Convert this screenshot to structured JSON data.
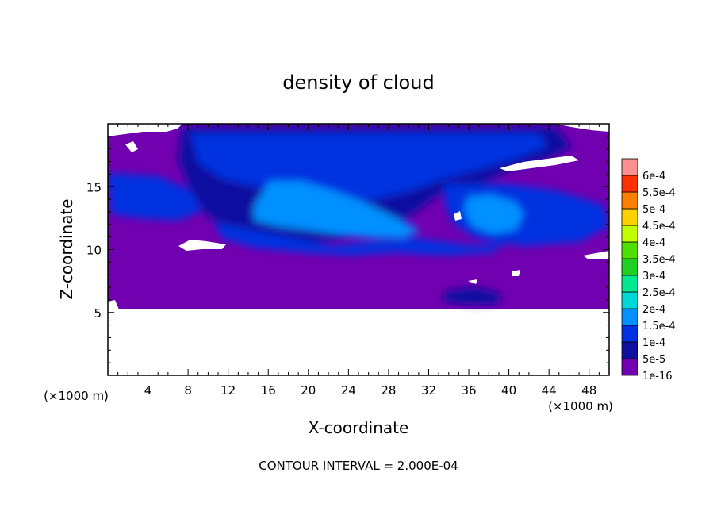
{
  "chart_data": {
    "type": "heatmap",
    "title": "density of cloud",
    "xlabel": "X-coordinate",
    "ylabel": "Z-coordinate",
    "x_unit": "(×1000 m)",
    "xlim": [
      0,
      50
    ],
    "ylim": [
      0,
      20
    ],
    "x_ticks": [
      "4",
      "8",
      "12",
      "16",
      "20",
      "24",
      "28",
      "32",
      "36",
      "40",
      "44",
      "48"
    ],
    "y_ticks": [
      "5",
      "10",
      "15"
    ],
    "contour_interval": "CONTOUR INTERVAL = 2.000E-04",
    "colorbar": {
      "labels": [
        "1e-16",
        "5e-5",
        "1e-4",
        "1.5e-4",
        "2e-4",
        "2.5e-4",
        "3e-4",
        "3.5e-4",
        "4e-4",
        "4.5e-4",
        "5e-4",
        "5.5e-4",
        "6e-4"
      ],
      "colors": [
        "#7000b0",
        "#1010a0",
        "#0030e0",
        "#0090ff",
        "#00d8d8",
        "#00e890",
        "#20d020",
        "#50e000",
        "#c0ff00",
        "#ffd000",
        "#ff8000",
        "#ff3000",
        "#ff9090"
      ]
    },
    "field": {
      "cloud_base_z": 5.3,
      "cloud_top_z": 20,
      "background_level": "1e-16",
      "regions": [
        {
          "level": "5e-5",
          "x": [
            3,
            47
          ],
          "z": [
            10.5,
            19.5
          ]
        },
        {
          "level": "1e-4",
          "x": [
            6,
            38
          ],
          "z": [
            13,
            19.5
          ]
        },
        {
          "level": "1e-4",
          "x": [
            0,
            10
          ],
          "z": [
            12,
            16
          ]
        },
        {
          "level": "1e-4",
          "x": [
            35,
            50
          ],
          "z": [
            10.5,
            15.5
          ]
        },
        {
          "level": "1.5e-4",
          "x": [
            14,
            28
          ],
          "z": [
            10.5,
            15
          ]
        },
        {
          "level": "5e-5",
          "x": [
            33,
            39
          ],
          "z": [
            5.5,
            6.8
          ]
        }
      ]
    }
  },
  "labels": {
    "x_unit_left": "(×1000 m)",
    "x_unit_right": "(×1000 m)"
  }
}
